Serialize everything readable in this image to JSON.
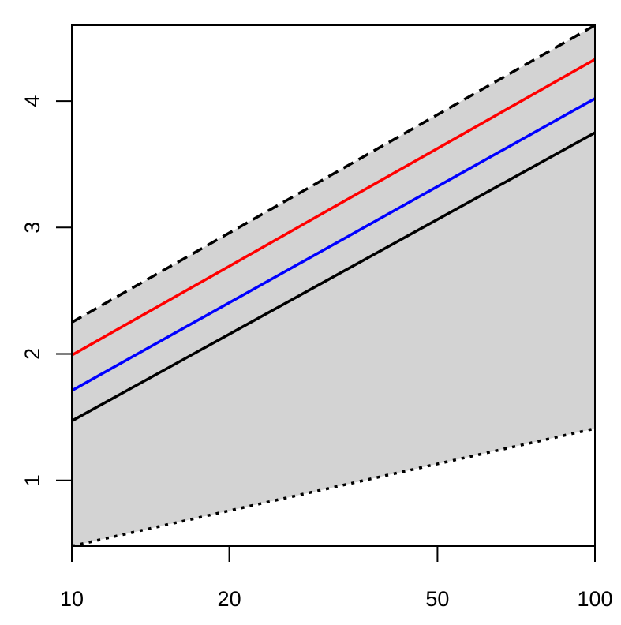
{
  "chart_data": {
    "type": "line",
    "title": "",
    "xlabel": "",
    "ylabel": "",
    "x_scale": "log",
    "xlim": [
      10,
      100
    ],
    "ylim": [
      0.48,
      4.6
    ],
    "x_ticks": [
      {
        "value": 10,
        "label": "10"
      },
      {
        "value": 20,
        "label": "20"
      },
      {
        "value": 50,
        "label": "50"
      },
      {
        "value": 100,
        "label": "100"
      }
    ],
    "y_ticks": [
      {
        "value": 1,
        "label": "1"
      },
      {
        "value": 2,
        "label": "2"
      },
      {
        "value": 3,
        "label": "3"
      },
      {
        "value": 4,
        "label": "4"
      }
    ],
    "band": {
      "fill": "#d3d3d3",
      "x": [
        10,
        100
      ],
      "lower": [
        0.48,
        1.41
      ],
      "upper": [
        2.25,
        4.6
      ]
    },
    "series": [
      {
        "key": "upper-dashed",
        "x": [
          10,
          100
        ],
        "y": [
          2.25,
          4.6
        ],
        "color": "#000000",
        "style": "dashed"
      },
      {
        "key": "red",
        "x": [
          10,
          100
        ],
        "y": [
          1.99,
          4.33
        ],
        "color": "#ff0000",
        "style": "solid"
      },
      {
        "key": "blue",
        "x": [
          10,
          100
        ],
        "y": [
          1.71,
          4.02
        ],
        "color": "#0000ff",
        "style": "solid"
      },
      {
        "key": "black",
        "x": [
          10,
          100
        ],
        "y": [
          1.47,
          3.75
        ],
        "color": "#000000",
        "style": "solid"
      },
      {
        "key": "lower-dotted",
        "x": [
          10,
          100
        ],
        "y": [
          0.48,
          1.41
        ],
        "color": "#000000",
        "style": "dotted"
      }
    ],
    "grid": false,
    "legend": "none"
  }
}
